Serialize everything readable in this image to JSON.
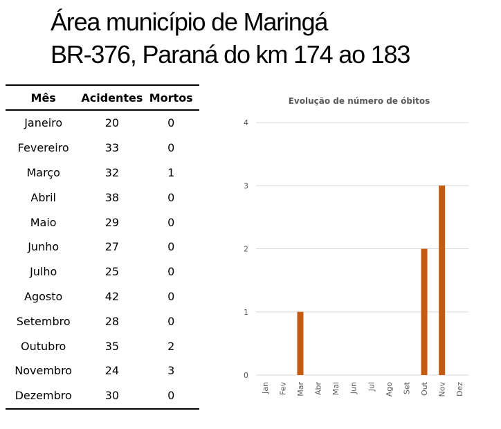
{
  "header": {
    "line1": "Área município de Maringá",
    "line2": "BR-376, Paraná do km 174 ao 183"
  },
  "table": {
    "headers": [
      "Mês",
      "Acidentes",
      "Mortos"
    ],
    "rows": [
      [
        "Janeiro",
        "20",
        "0"
      ],
      [
        "Fevereiro",
        "33",
        "0"
      ],
      [
        "Março",
        "32",
        "1"
      ],
      [
        "Abril",
        "38",
        "0"
      ],
      [
        "Maio",
        "29",
        "0"
      ],
      [
        "Junho",
        "27",
        "0"
      ],
      [
        "Julho",
        "25",
        "0"
      ],
      [
        "Agosto",
        "42",
        "0"
      ],
      [
        "Setembro",
        "28",
        "0"
      ],
      [
        "Outubro",
        "35",
        "2"
      ],
      [
        "Novembro",
        "24",
        "3"
      ],
      [
        "Dezembro",
        "30",
        "0"
      ]
    ]
  },
  "chart_data": {
    "type": "bar",
    "title": "Evolução de número de óbitos",
    "categories": [
      "Jan",
      "Fev",
      "Mar",
      "Abr",
      "Mai",
      "Jun",
      "Jul",
      "Ago",
      "Set",
      "Out",
      "Nov",
      "Dez"
    ],
    "values": [
      0,
      0,
      1,
      0,
      0,
      0,
      0,
      0,
      0,
      2,
      3,
      0
    ],
    "yticks": [
      0,
      1,
      2,
      3,
      4
    ],
    "ylim": [
      0,
      4
    ],
    "xlabel": "",
    "ylabel": "",
    "grid": true,
    "bar_color": "#c55a11"
  }
}
